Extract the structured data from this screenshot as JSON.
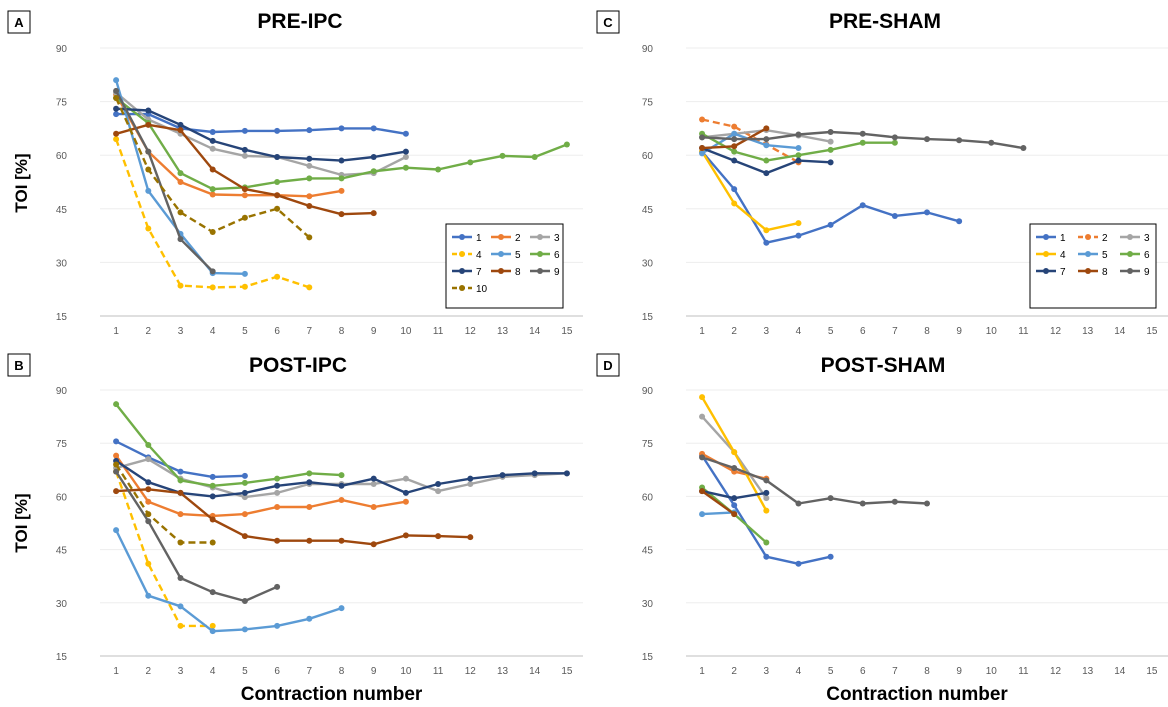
{
  "series_colors": {
    "1": "#4472C4",
    "2": "#ED7D31",
    "3": "#A5A5A5",
    "4": "#FFC000",
    "5": "#5B9BD5",
    "6": "#70AD47",
    "7": "#264478",
    "8": "#9E480E",
    "9": "#636363",
    "10": "#997300"
  },
  "chart_data": [
    {
      "panel": "A",
      "type": "line",
      "title": "PRE-IPC",
      "ylabel": "TOI [%]",
      "xlabel": "",
      "x_ticks": [
        1,
        2,
        3,
        4,
        5,
        6,
        7,
        8,
        9,
        10,
        11,
        12,
        13,
        14,
        15
      ],
      "y_ticks": [
        15,
        30,
        45,
        60,
        75,
        90
      ],
      "ylim": [
        15,
        90
      ],
      "legend": [
        "1",
        "2",
        "3",
        "4",
        "5",
        "6",
        "7",
        "8",
        "9",
        "10"
      ],
      "series": [
        {
          "name": "1",
          "dashed": false,
          "values": [
            71.5,
            71.5,
            67.5,
            66.5,
            66.8,
            66.8,
            67,
            67.5,
            67.5,
            66
          ]
        },
        {
          "name": "2",
          "dashed": false,
          "values": [
            77,
            61,
            52.5,
            49,
            48.8,
            48.8,
            48.5,
            50
          ]
        },
        {
          "name": "3",
          "dashed": false,
          "values": [
            77.5,
            70,
            66,
            61.8,
            59.8,
            59.5,
            57,
            54.5,
            55,
            59.5
          ]
        },
        {
          "name": "4",
          "dashed": true,
          "values": [
            64.5,
            39.5,
            23.5,
            23,
            23.2,
            26,
            23
          ]
        },
        {
          "name": "5",
          "dashed": false,
          "values": [
            81,
            50,
            38,
            27,
            26.8
          ]
        },
        {
          "name": "6",
          "dashed": false,
          "values": [
            76,
            69,
            55,
            50.5,
            51,
            52.5,
            53.5,
            53.5,
            55.5,
            56.5,
            56,
            58,
            59.8,
            59.5,
            63
          ]
        },
        {
          "name": "7",
          "dashed": false,
          "values": [
            73,
            72.5,
            68.5,
            64,
            61.5,
            59.5,
            59,
            58.5,
            59.5,
            61
          ]
        },
        {
          "name": "8",
          "dashed": false,
          "values": [
            66,
            68.5,
            67,
            56,
            50.5,
            48.8,
            45.8,
            43.5,
            43.8
          ]
        },
        {
          "name": "9",
          "dashed": false,
          "values": [
            78,
            61,
            36.5,
            27.5
          ]
        },
        {
          "name": "10",
          "dashed": true,
          "values": [
            76,
            56,
            44,
            38.5,
            42.5,
            45,
            37
          ]
        }
      ]
    },
    {
      "panel": "B",
      "type": "line",
      "title": "POST-IPC",
      "ylabel": "TOI [%]",
      "xlabel": "Contraction number",
      "x_ticks": [
        1,
        2,
        3,
        4,
        5,
        6,
        7,
        8,
        9,
        10,
        11,
        12,
        13,
        14,
        15
      ],
      "y_ticks": [
        15,
        30,
        45,
        60,
        75,
        90
      ],
      "ylim": [
        15,
        90
      ],
      "series": [
        {
          "name": "1",
          "dashed": false,
          "values": [
            75.5,
            71,
            67,
            65.5,
            65.8
          ]
        },
        {
          "name": "2",
          "dashed": false,
          "values": [
            71.5,
            58.5,
            55,
            54.5,
            55,
            57,
            57,
            59,
            57,
            58.5
          ]
        },
        {
          "name": "3",
          "dashed": false,
          "values": [
            68,
            70.5,
            65,
            62.5,
            59.8,
            61,
            63.5,
            63.5,
            63.5,
            65,
            61.5,
            63.5,
            65.5,
            66,
            66.5
          ]
        },
        {
          "name": "4",
          "dashed": true,
          "values": [
            67,
            41,
            23.5,
            23.5
          ]
        },
        {
          "name": "5",
          "dashed": false,
          "values": [
            50.5,
            32,
            29,
            22,
            22.5,
            23.5,
            25.5,
            28.5
          ]
        },
        {
          "name": "6",
          "dashed": false,
          "values": [
            86,
            74.5,
            64.5,
            63,
            63.8,
            65,
            66.5,
            66
          ]
        },
        {
          "name": "7",
          "dashed": false,
          "values": [
            70,
            64,
            61,
            60,
            61,
            63,
            64,
            63,
            65,
            61,
            63.5,
            65,
            66,
            66.5,
            66.5
          ]
        },
        {
          "name": "8",
          "dashed": false,
          "values": [
            61.5,
            62,
            61,
            53.5,
            48.8,
            47.5,
            47.5,
            47.5,
            46.5,
            49,
            48.8,
            48.5
          ]
        },
        {
          "name": "9",
          "dashed": false,
          "values": [
            67,
            53,
            37,
            33,
            30.5,
            34.5
          ]
        },
        {
          "name": "10",
          "dashed": true,
          "values": [
            69,
            55,
            47,
            47
          ]
        }
      ]
    },
    {
      "panel": "C",
      "type": "line",
      "title": "PRE-SHAM",
      "ylabel": "",
      "xlabel": "",
      "x_ticks": [
        1,
        2,
        3,
        4,
        5,
        6,
        7,
        8,
        9,
        10,
        11,
        12,
        13,
        14,
        15
      ],
      "y_ticks": [
        15,
        30,
        45,
        60,
        75,
        90
      ],
      "ylim": [
        15,
        90
      ],
      "legend": [
        "1",
        "2",
        "3",
        "4",
        "5",
        "6",
        "7",
        "8",
        "9"
      ],
      "series": [
        {
          "name": "1",
          "dashed": false,
          "values": [
            61,
            50.5,
            35.5,
            37.5,
            40.5,
            46,
            43,
            44,
            41.5
          ]
        },
        {
          "name": "2",
          "dashed": true,
          "values": [
            70,
            68,
            63,
            58
          ]
        },
        {
          "name": "3",
          "dashed": false,
          "values": [
            65,
            66,
            67,
            65.5,
            63.8
          ]
        },
        {
          "name": "4",
          "dashed": false,
          "values": [
            61,
            46.5,
            39,
            41
          ]
        },
        {
          "name": "5",
          "dashed": false,
          "values": [
            60.5,
            66,
            62.8,
            62
          ]
        },
        {
          "name": "6",
          "dashed": false,
          "values": [
            66,
            61,
            58.5,
            60,
            61.5,
            63.5,
            63.5
          ]
        },
        {
          "name": "7",
          "dashed": false,
          "values": [
            62,
            58.5,
            55,
            58.5,
            58
          ]
        },
        {
          "name": "8",
          "dashed": false,
          "values": [
            62,
            62.5,
            67.5
          ]
        },
        {
          "name": "9",
          "dashed": false,
          "values": [
            65,
            64.5,
            64.5,
            65.8,
            66.5,
            66,
            65,
            64.5,
            64.2,
            63.5,
            62
          ]
        }
      ]
    },
    {
      "panel": "D",
      "type": "line",
      "title": "POST-SHAM",
      "ylabel": "",
      "xlabel": "Contraction number",
      "x_ticks": [
        1,
        2,
        3,
        4,
        5,
        6,
        7,
        8,
        9,
        10,
        11,
        12,
        13,
        14,
        15
      ],
      "y_ticks": [
        15,
        30,
        45,
        60,
        75,
        90
      ],
      "ylim": [
        15,
        90
      ],
      "series": [
        {
          "name": "1",
          "dashed": false,
          "values": [
            71.5,
            57.5,
            43,
            41,
            43
          ]
        },
        {
          "name": "2",
          "dashed": false,
          "values": [
            72,
            67,
            65
          ]
        },
        {
          "name": "3",
          "dashed": false,
          "values": [
            82.5,
            72.5,
            59.5
          ]
        },
        {
          "name": "4",
          "dashed": false,
          "values": [
            88,
            72.5,
            56
          ]
        },
        {
          "name": "5",
          "dashed": false,
          "values": [
            55,
            55.5
          ]
        },
        {
          "name": "6",
          "dashed": false,
          "values": [
            62.5,
            55,
            47
          ]
        },
        {
          "name": "7",
          "dashed": false,
          "values": [
            61.5,
            59.5,
            61
          ]
        },
        {
          "name": "8",
          "dashed": false,
          "values": [
            61.5,
            55
          ]
        },
        {
          "name": "9",
          "dashed": false,
          "values": [
            71,
            68,
            64.5,
            58,
            59.5,
            58,
            58.5,
            58
          ]
        }
      ]
    }
  ]
}
